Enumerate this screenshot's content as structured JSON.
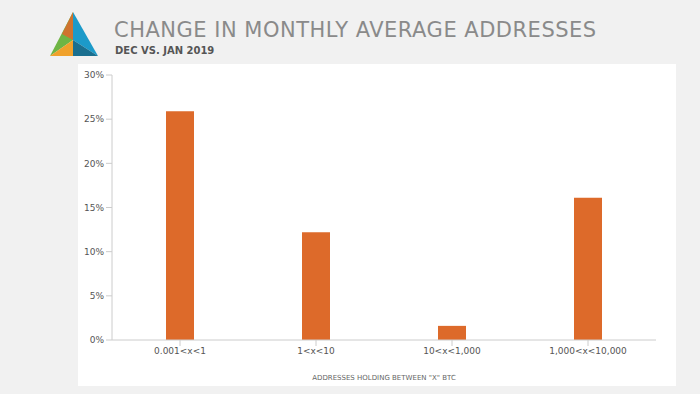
{
  "chart_data": {
    "type": "bar",
    "title": "CHANGE IN MONTHLY AVERAGE ADDRESSES",
    "subtitle": "DEC VS. JAN 2019",
    "x_label": "ADDRESSES HOLDING BETWEEN \"X\" BTC",
    "categories": [
      "0.001<x<1",
      "1<x<10",
      "10<x<1,000",
      "1,000<x<10,000"
    ],
    "values": [
      25.9,
      12.2,
      1.6,
      16.1
    ],
    "color": "#dd6a2a",
    "ylim": [
      0,
      30
    ],
    "yticks": [
      {
        "value": 0,
        "label": "0%"
      },
      {
        "value": 5,
        "label": "5%"
      },
      {
        "value": 10,
        "label": "10%"
      },
      {
        "value": 15,
        "label": "15%"
      },
      {
        "value": 20,
        "label": "20%"
      },
      {
        "value": 25,
        "label": "25%"
      },
      {
        "value": 30,
        "label": "30%"
      }
    ],
    "grid": false
  }
}
